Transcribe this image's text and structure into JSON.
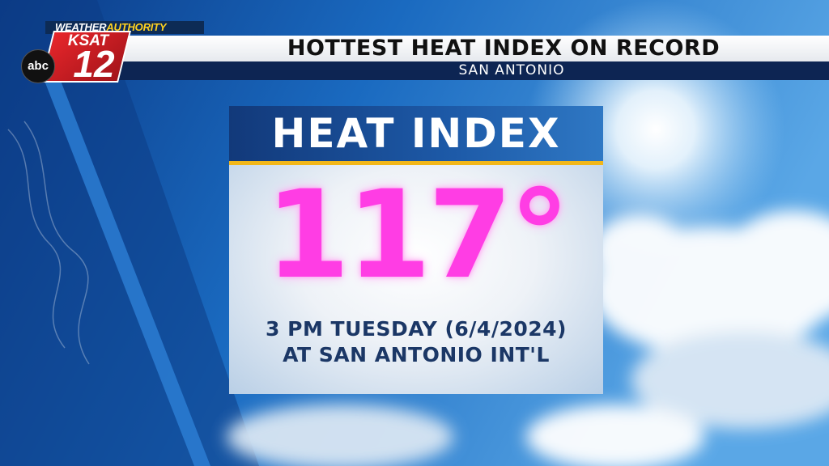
{
  "logo": {
    "brand_part1": "WEATHER",
    "brand_part2": "AUTHORITY",
    "station": "KSAT",
    "channel": "12",
    "network": "abc"
  },
  "header": {
    "title": "HOTTEST HEAT INDEX ON RECORD",
    "subtitle": "SAN ANTONIO"
  },
  "card": {
    "heading": "HEAT INDEX",
    "value": "117°",
    "details": [
      "3 PM TUESDAY (6/4/2024)",
      "AT SAN ANTONIO INT'L"
    ]
  }
}
